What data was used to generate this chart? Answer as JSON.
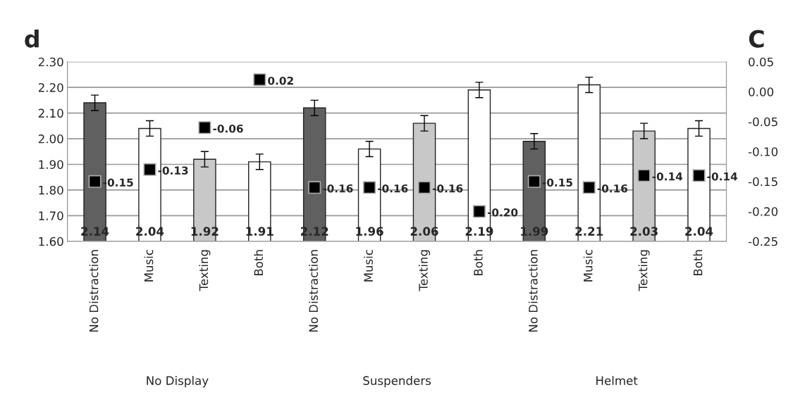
{
  "chart_data": {
    "type": "bar",
    "categories": [
      "No Distraction",
      "Music",
      "Texting",
      "Both",
      "No Distraction",
      "Music",
      "Texting",
      "Both",
      "No Distraction",
      "Music",
      "Texting",
      "Both"
    ],
    "annotations": [
      "d",
      "C",
      "No Display",
      "Suspenders",
      "Helmet"
    ],
    "ylim": [
      1.6,
      2.3
    ],
    "yticks": [
      {
        "value": 1.6,
        "label": "1.60"
      },
      {
        "value": 1.7,
        "label": "1.70"
      },
      {
        "value": 1.8,
        "label": "1.80"
      },
      {
        "value": 1.9,
        "label": "1.90"
      },
      {
        "value": 2.0,
        "label": "2.00"
      },
      {
        "value": 2.1,
        "label": "2.10"
      },
      {
        "value": 2.2,
        "label": "2.20"
      },
      {
        "value": 2.3,
        "label": "2.30"
      }
    ],
    "y2lim": [
      -0.25,
      0.05
    ],
    "y2ticks": [
      {
        "value": -0.25,
        "label": "-0.25"
      },
      {
        "value": -0.2,
        "label": "-0.20"
      },
      {
        "value": -0.15,
        "label": "-0.15"
      },
      {
        "value": -0.1,
        "label": "-0.10"
      },
      {
        "value": -0.05,
        "label": "-0.05"
      },
      {
        "value": 0,
        "label": "0.00"
      },
      {
        "value": 0.05,
        "label": "0.05"
      }
    ],
    "grid": "y",
    "legend": false,
    "series": [
      {
        "colors": [
          "#606060",
          "#ffffff",
          "#c8c8c8",
          "#ffffff",
          "#606060",
          "#ffffff",
          "#c8c8c8",
          "#ffffff",
          "#606060",
          "#ffffff",
          "#c8c8c8",
          "#ffffff"
        ],
        "values": [
          2.14,
          2.04,
          1.92,
          1.91,
          2.12,
          1.96,
          2.06,
          2.19,
          1.99,
          2.21,
          2.03,
          2.04
        ],
        "errors": [
          0.03,
          0.03,
          0.03,
          0.03,
          0.03,
          0.03,
          0.03,
          0.03,
          0.03,
          0.03,
          0.03,
          0.03
        ],
        "value_labels": [
          "2.14",
          "2.04",
          "1.92",
          "1.91",
          "2.12",
          "1.96",
          "2.06",
          "2.19",
          "1.99",
          "2.21",
          "2.03",
          "2.04"
        ]
      },
      {
        "type": "scatter",
        "axis": "y2",
        "color": "#000000",
        "marker": "square",
        "values": [
          -0.15,
          -0.13,
          -0.06,
          0.02,
          -0.16,
          -0.16,
          -0.16,
          -0.2,
          -0.15,
          -0.16,
          -0.14,
          -0.14
        ],
        "value_labels": [
          "-0.15",
          "-0.13",
          "-0.06",
          "0.02",
          "-0.16",
          "-0.16",
          "-0.16",
          "-0.20",
          "-0.15",
          "-0.16",
          "-0.14",
          "-0.14"
        ]
      }
    ]
  }
}
